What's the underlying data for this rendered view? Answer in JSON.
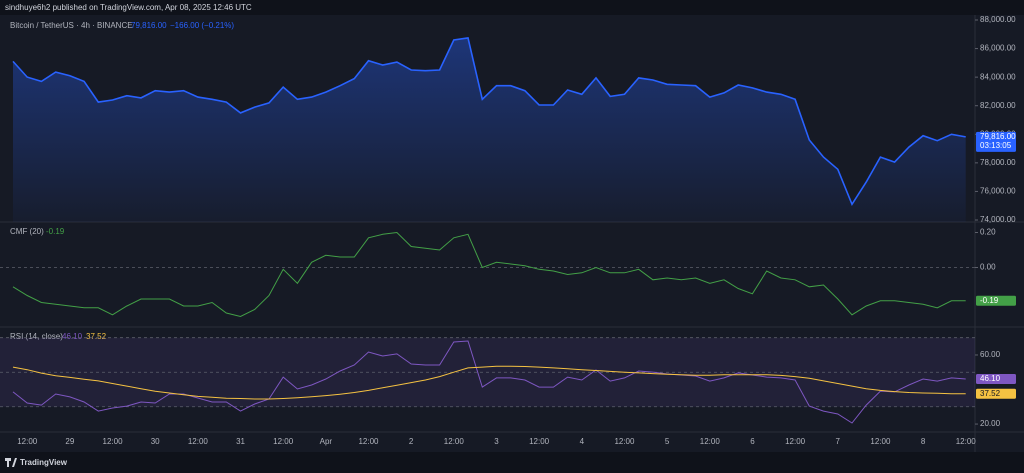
{
  "header": "sindhuye6h2 published on TradingView.com, Apr 08, 2025 12:46 UTC",
  "footer": "TradingView",
  "chart_data": [
    {
      "type": "area",
      "title": "Bitcoin / TetherUS · 4h · BINANCE",
      "change": "−166.00 (−0.21%)",
      "countdown": "03:13:05",
      "ylim": [
        73860,
        88350
      ],
      "yticks": [
        {
          "value": 88000,
          "label": "88,000.00"
        },
        {
          "value": 86000,
          "label": "86,000.00"
        },
        {
          "value": 84000,
          "label": "84,000.00"
        },
        {
          "value": 82000,
          "label": "82,000.00"
        },
        {
          "value": 80000,
          "label": "80,000.00"
        },
        {
          "value": 78000,
          "label": "78,000.00"
        },
        {
          "value": 76000,
          "label": "76,000.00"
        },
        {
          "value": 74000,
          "label": "74,000.00"
        }
      ],
      "series": [
        {
          "color": "#2962ff",
          "values": [
            85100,
            84000,
            83700,
            84350,
            84100,
            83700,
            82250,
            82400,
            82700,
            82550,
            83050,
            82950,
            83050,
            82600,
            82450,
            82250,
            81500,
            81900,
            82200,
            83300,
            82450,
            82600,
            82950,
            83400,
            83900,
            85150,
            84850,
            85050,
            84500,
            84450,
            84500,
            86600,
            86750,
            82450,
            83400,
            83400,
            83050,
            82050,
            82050,
            83100,
            82800,
            83950,
            82650,
            82800,
            83950,
            83800,
            83500,
            83450,
            83400,
            82600,
            82900,
            83450,
            83250,
            82950,
            82800,
            82450,
            79600,
            78400,
            77550,
            75100,
            76650,
            78400,
            78050,
            79100,
            79900,
            79550,
            80000,
            79816
          ],
          "value_labels": [
            null,
            null,
            null,
            null,
            null,
            null,
            null,
            null,
            null,
            null,
            null,
            null,
            null,
            null,
            null,
            null,
            null,
            null,
            null,
            null,
            null,
            null,
            null,
            null,
            null,
            null,
            null,
            null,
            null,
            null,
            null,
            null,
            null,
            null,
            null,
            null,
            null,
            null,
            null,
            null,
            null,
            null,
            null,
            null,
            null,
            null,
            null,
            null,
            null,
            null,
            null,
            null,
            null,
            null,
            null,
            null,
            null,
            null,
            null,
            null,
            null,
            null,
            null,
            null,
            null,
            null,
            null,
            "79,816.00"
          ]
        }
      ]
    },
    {
      "type": "line",
      "title": "CMF (20)",
      "ylim": [
        -0.34,
        0.26
      ],
      "yticks": [
        {
          "value": 0.2,
          "label": "0.20"
        },
        {
          "value": 0,
          "label": "0.00"
        }
      ],
      "hlines": [
        0
      ],
      "series": [
        {
          "color": "#43a047",
          "values": [
            -0.11,
            -0.16,
            -0.2,
            -0.21,
            -0.22,
            -0.23,
            -0.23,
            -0.27,
            -0.22,
            -0.18,
            -0.18,
            -0.18,
            -0.22,
            -0.22,
            -0.2,
            -0.26,
            -0.28,
            -0.24,
            -0.16,
            -0.01,
            -0.09,
            0.03,
            0.07,
            0.06,
            0.06,
            0.17,
            0.19,
            0.2,
            0.12,
            0.11,
            0.1,
            0.17,
            0.19,
            0,
            0.03,
            0.02,
            0.01,
            -0.01,
            -0.02,
            -0.04,
            -0.03,
            0,
            -0.03,
            -0.03,
            -0.01,
            -0.07,
            -0.06,
            -0.07,
            -0.06,
            -0.09,
            -0.07,
            -0.12,
            -0.15,
            -0.02,
            -0.06,
            -0.07,
            -0.11,
            -0.1,
            -0.18,
            -0.27,
            -0.22,
            -0.19,
            -0.19,
            -0.2,
            -0.21,
            -0.23,
            -0.19,
            -0.19
          ]
        }
      ]
    },
    {
      "type": "line",
      "title": "RSI (14, close)",
      "ylim": [
        15.4,
        76.2
      ],
      "yticks": [
        {
          "value": 60,
          "label": "60.00"
        },
        {
          "value": 20,
          "label": "20.00"
        }
      ],
      "band": [
        30,
        70
      ],
      "hlines": [
        70,
        50,
        30
      ],
      "categories": [
        null,
        "12:00",
        null,
        null,
        "29",
        null,
        null,
        "12:00",
        null,
        null,
        "30",
        null,
        null,
        "12:00",
        null,
        null,
        "31",
        null,
        null,
        "12:00",
        null,
        null,
        "Apr",
        null,
        null,
        "12:00",
        null,
        null,
        "2",
        null,
        null,
        "12:00",
        null,
        null,
        "3",
        null,
        null,
        "12:00",
        null,
        null,
        "4",
        null,
        null,
        "12:00",
        null,
        null,
        "5",
        null,
        null,
        "12:00",
        null,
        null,
        "6",
        null,
        null,
        "12:00",
        null,
        null,
        "7",
        null,
        null,
        "12:00",
        null,
        null,
        "8",
        null,
        null,
        "12:00"
      ],
      "series": [
        {
          "color": "#7e57c2",
          "values": [
            38.6,
            32.2,
            31,
            37.4,
            35.7,
            32.8,
            27.5,
            29.3,
            30.4,
            32.8,
            32.2,
            37.4,
            37.4,
            35.1,
            32.8,
            32.8,
            27.5,
            31.6,
            34.5,
            47.2,
            40.3,
            42.6,
            46.1,
            50.7,
            54.2,
            61.7,
            59.4,
            60.6,
            54.8,
            54.2,
            54.2,
            67.5,
            68.1,
            41.4,
            46.7,
            46.7,
            45.5,
            41.4,
            41.4,
            47.2,
            45.5,
            51.3,
            44.9,
            46.7,
            50.7,
            50.1,
            49,
            48.4,
            47.8,
            44.9,
            46.7,
            49.6,
            48.4,
            47.2,
            46.7,
            45.5,
            30.4,
            27.5,
            25.8,
            20.6,
            31,
            39.1,
            38.6,
            42.6,
            46.1,
            44.9,
            46.7,
            46.1
          ],
          "value_labels": [
            null,
            null,
            null,
            null,
            null,
            null,
            null,
            null,
            null,
            null,
            null,
            null,
            null,
            null,
            null,
            null,
            null,
            null,
            null,
            null,
            null,
            null,
            null,
            null,
            null,
            null,
            null,
            null,
            null,
            null,
            null,
            null,
            null,
            null,
            null,
            null,
            null,
            null,
            null,
            null,
            null,
            null,
            null,
            null,
            null,
            null,
            null,
            null,
            null,
            null,
            null,
            null,
            null,
            null,
            null,
            null,
            null,
            null,
            null,
            null,
            null,
            null,
            null,
            null,
            null,
            null,
            null,
            "46.10"
          ]
        },
        {
          "color": "#f5c242",
          "values": [
            53,
            51.5,
            49.5,
            48,
            47,
            46,
            45,
            43.5,
            42,
            40.5,
            39,
            38,
            37,
            36,
            35.5,
            35,
            34.8,
            34.5,
            34.5,
            34.8,
            35.2,
            35.8,
            36.5,
            37.3,
            38.3,
            39.5,
            41,
            42.5,
            44,
            45.5,
            47.5,
            50,
            52.5,
            53,
            53.5,
            53.5,
            53.3,
            53,
            52.5,
            52,
            51.5,
            51,
            50.5,
            50,
            49.6,
            49.2,
            48.8,
            48.5,
            48.3,
            48.3,
            48.5,
            48.6,
            48.6,
            48.5,
            48.2,
            47.5,
            46.5,
            45,
            43.5,
            42,
            40.5,
            39.5,
            38.8,
            38.3,
            38,
            37.8,
            37.6,
            37.52
          ],
          "value_labels": [
            null,
            null,
            null,
            null,
            null,
            null,
            null,
            null,
            null,
            null,
            null,
            null,
            null,
            null,
            null,
            null,
            null,
            null,
            null,
            null,
            null,
            null,
            null,
            null,
            null,
            null,
            null,
            null,
            null,
            null,
            null,
            null,
            null,
            null,
            null,
            null,
            null,
            null,
            null,
            null,
            null,
            null,
            null,
            null,
            null,
            null,
            null,
            null,
            null,
            null,
            null,
            null,
            null,
            null,
            null,
            null,
            null,
            null,
            null,
            null,
            null,
            null,
            null,
            null,
            null,
            null,
            null,
            "37.52"
          ]
        }
      ]
    }
  ]
}
